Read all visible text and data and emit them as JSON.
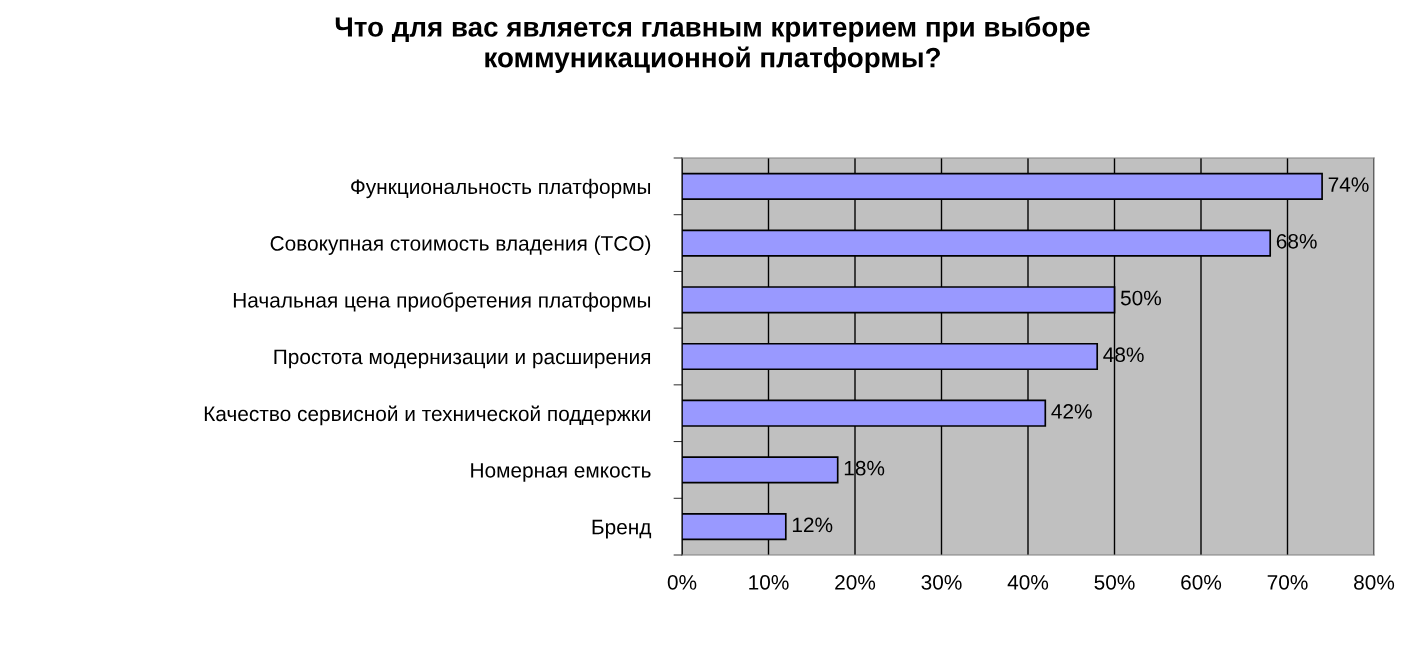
{
  "chart_data": {
    "type": "bar",
    "orientation": "horizontal",
    "title": "Что для вас является главным критерием при выборе\nкоммуникационной платформы?",
    "categories": [
      "Функциональность платформы",
      "Совокупная стоимость владения (TCO)",
      "Начальная цена приобретения платформы",
      "Простота модернизации и расширения",
      "Качество сервисной и технической поддержки",
      "Номерная емкость",
      "Бренд"
    ],
    "values": [
      74,
      68,
      50,
      48,
      42,
      18,
      12
    ],
    "value_labels": [
      "74%",
      "68%",
      "50%",
      "48%",
      "42%",
      "18%",
      "12%"
    ],
    "color": "#9999ff",
    "xlim": [
      0,
      80
    ],
    "xticks": [
      {
        "value": 0,
        "label": "0%"
      },
      {
        "value": 10,
        "label": "10%"
      },
      {
        "value": 20,
        "label": "20%"
      },
      {
        "value": 30,
        "label": "30%"
      },
      {
        "value": 40,
        "label": "40%"
      },
      {
        "value": 50,
        "label": "50%"
      },
      {
        "value": 60,
        "label": "60%"
      },
      {
        "value": 70,
        "label": "70%"
      },
      {
        "value": 80,
        "label": "80%"
      }
    ],
    "grid": "x",
    "legend": false
  }
}
